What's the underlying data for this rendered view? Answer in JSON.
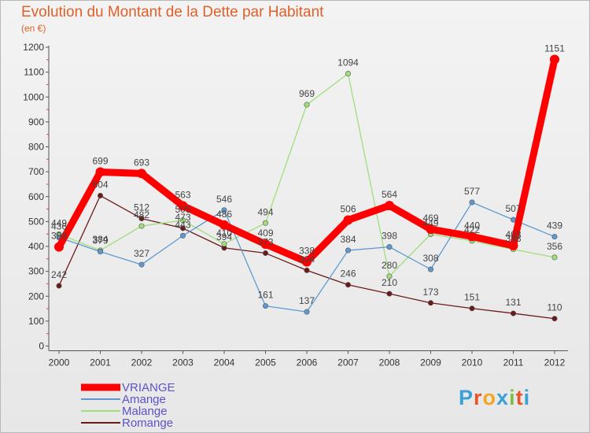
{
  "header": {
    "title": "Evolution du Montant de la Dette par Habitant",
    "unit": "(en €)"
  },
  "logo": {
    "text": "Proxiti",
    "colors": [
      "#3aa0d8",
      "#e8542a",
      "#f2a623",
      "#3aa0d8",
      "#7ac143",
      "#e8542a",
      "#3aa0d8"
    ]
  },
  "chart_data": {
    "type": "line",
    "title": "Evolution du Montant de la Dette par Habitant",
    "subtitle": "(en €)",
    "x": [
      "2000",
      "2001",
      "2002",
      "2003",
      "2004",
      "2005",
      "2006",
      "2007",
      "2008",
      "2009",
      "2010",
      "2011",
      "2012"
    ],
    "yticks": [
      "0",
      "100",
      "200",
      "300",
      "400",
      "500",
      "600",
      "700",
      "800",
      "900",
      "1000",
      "1100",
      "1200"
    ],
    "ylim": [
      0,
      1200
    ],
    "grid": false,
    "legend": "bottom-left",
    "series": [
      {
        "name": "Romange",
        "color": "#6b1a1a",
        "values": [
          242,
          604,
          512,
          473,
          394,
          373,
          304,
          246,
          210,
          173,
          151,
          131,
          110
        ]
      },
      {
        "name": "Malange",
        "color": "#9fde7a",
        "values": [
          449,
          384,
          482,
          505,
          410,
          494,
          969,
          1094,
          280,
          449,
          422,
          388,
          356
        ]
      },
      {
        "name": "Amange",
        "color": "#5e9ad0",
        "values": [
          436,
          379,
          327,
          443,
          546,
          161,
          137,
          384,
          398,
          308,
          577,
          507,
          439
        ]
      },
      {
        "name": "VRIANGE",
        "color": "#ff0000",
        "values": [
          398,
          699,
          693,
          563,
          486,
          409,
          338,
          506,
          564,
          469,
          440,
          403,
          1151
        ]
      }
    ],
    "legend_order": [
      "VRIANGE",
      "Amange",
      "Malange",
      "Romange"
    ]
  }
}
